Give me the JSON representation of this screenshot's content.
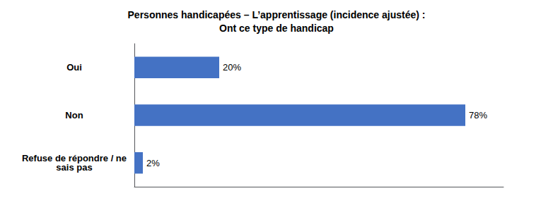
{
  "chart_data": {
    "type": "bar",
    "orientation": "horizontal",
    "title": "Personnes handicapées – L’apprentissage (incidence ajustée) :\nOnt ce type de handicap",
    "categories": [
      "Refuse de répondre / ne\nsais pas",
      "Non",
      "Oui"
    ],
    "values": [
      2,
      78,
      20
    ],
    "value_labels": [
      "2%",
      "78%",
      "20%"
    ],
    "data_labels": true,
    "color": "#4472C4",
    "xlim": [
      0,
      87
    ],
    "tick_labels": "y",
    "grid": false
  }
}
